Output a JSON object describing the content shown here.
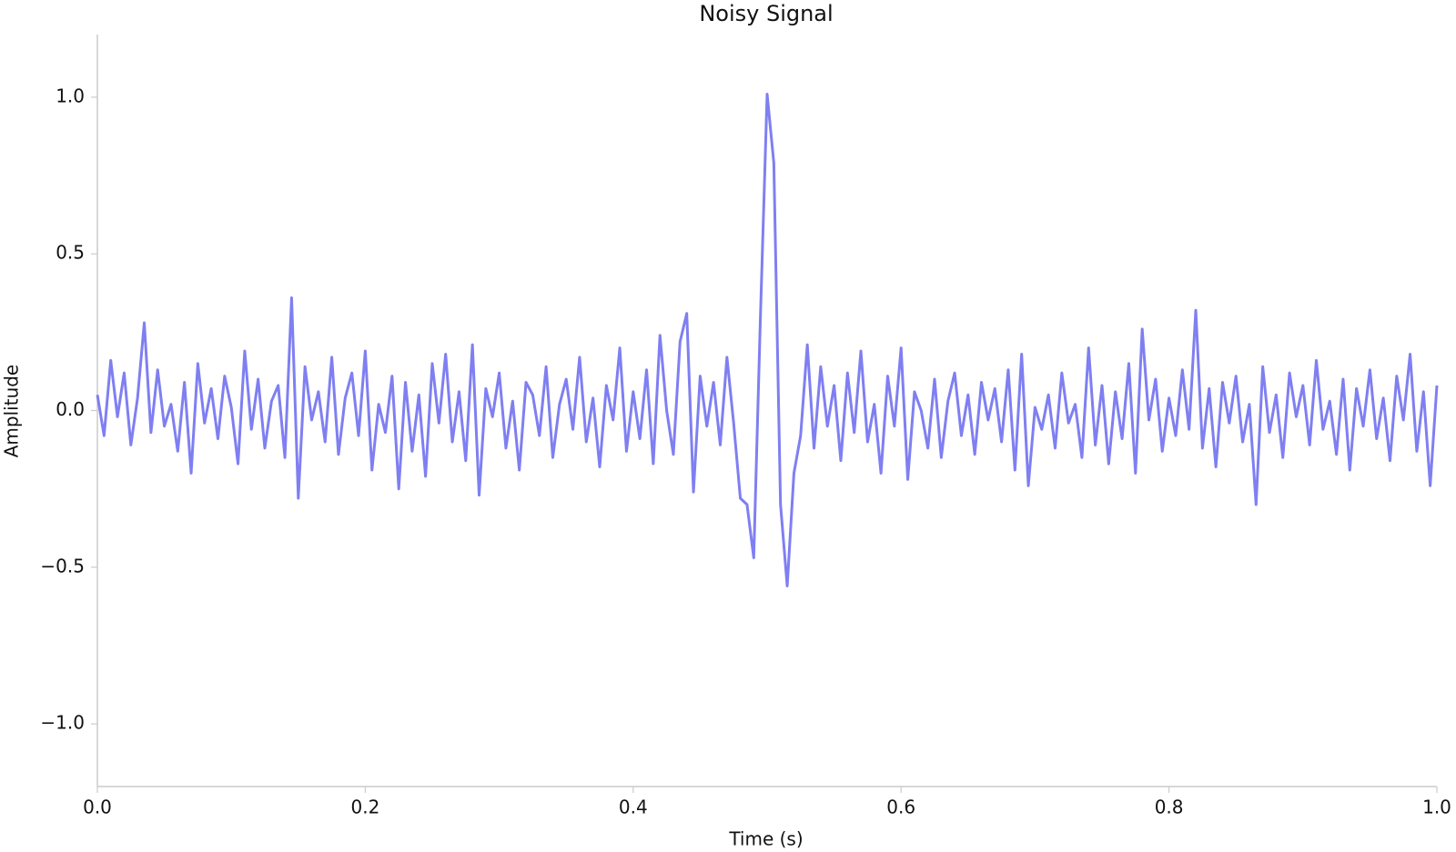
{
  "chart_data": {
    "type": "line",
    "title": "Noisy Signal",
    "x_label": "Time (s)",
    "y_label": "Amplitude",
    "color": "#7f7ff2",
    "xlim": [
      0,
      1
    ],
    "ylim": [
      -1.2,
      1.2
    ],
    "xticks": [
      {
        "value": 0,
        "label": "0.0"
      },
      0.2,
      0.4,
      0.6,
      0.8,
      {
        "value": 1,
        "label": "1.0"
      }
    ],
    "yticks": [
      {
        "value": -1,
        "label": "−1.0"
      },
      {
        "value": -0.5,
        "label": "−0.5"
      },
      {
        "value": 0,
        "label": "0.0"
      },
      0.5,
      {
        "value": 1,
        "label": "1.0"
      }
    ],
    "grid": false,
    "x": [
      0,
      0.005,
      0.01,
      0.015,
      0.02,
      0.025,
      0.03,
      0.035,
      0.04,
      0.045,
      0.05,
      0.055,
      0.06,
      0.065,
      0.07,
      0.075,
      0.08,
      0.085,
      0.09,
      0.095,
      0.1,
      0.105,
      0.11,
      0.115,
      0.12,
      0.125,
      0.13,
      0.135,
      0.14,
      0.145,
      0.15,
      0.155,
      0.16,
      0.165,
      0.17,
      0.175,
      0.18,
      0.185,
      0.19,
      0.195,
      0.2,
      0.205,
      0.21,
      0.215,
      0.22,
      0.225,
      0.23,
      0.235,
      0.24,
      0.245,
      0.25,
      0.255,
      0.26,
      0.265,
      0.27,
      0.275,
      0.28,
      0.285,
      0.29,
      0.295,
      0.3,
      0.305,
      0.31,
      0.315,
      0.32,
      0.325,
      0.33,
      0.335,
      0.34,
      0.345,
      0.35,
      0.355,
      0.36,
      0.365,
      0.37,
      0.375,
      0.38,
      0.385,
      0.39,
      0.395,
      0.4,
      0.405,
      0.41,
      0.415,
      0.42,
      0.425,
      0.43,
      0.435,
      0.44,
      0.445,
      0.45,
      0.455,
      0.46,
      0.465,
      0.47,
      0.475,
      0.48,
      0.485,
      0.49,
      0.495,
      0.5,
      0.505,
      0.51,
      0.515,
      0.52,
      0.525,
      0.53,
      0.535,
      0.54,
      0.545,
      0.55,
      0.555,
      0.56,
      0.565,
      0.57,
      0.575,
      0.58,
      0.585,
      0.59,
      0.595,
      0.6,
      0.605,
      0.61,
      0.615,
      0.62,
      0.625,
      0.63,
      0.635,
      0.64,
      0.645,
      0.65,
      0.655,
      0.66,
      0.665,
      0.67,
      0.675,
      0.68,
      0.685,
      0.69,
      0.695,
      0.7,
      0.705,
      0.71,
      0.715,
      0.72,
      0.725,
      0.73,
      0.735,
      0.74,
      0.745,
      0.75,
      0.755,
      0.76,
      0.765,
      0.77,
      0.775,
      0.78,
      0.785,
      0.79,
      0.795,
      0.8,
      0.805,
      0.81,
      0.815,
      0.82,
      0.825,
      0.83,
      0.835,
      0.84,
      0.845,
      0.85,
      0.855,
      0.86,
      0.865,
      0.87,
      0.875,
      0.88,
      0.885,
      0.89,
      0.895,
      0.9,
      0.905,
      0.91,
      0.915,
      0.92,
      0.925,
      0.93,
      0.935,
      0.94,
      0.945,
      0.95,
      0.955,
      0.96,
      0.965,
      0.97,
      0.975,
      0.98,
      0.985,
      0.99,
      0.995,
      1
    ],
    "values": [
      0.05,
      -0.08,
      0.16,
      -0.02,
      0.12,
      -0.11,
      0.04,
      0.28,
      -0.07,
      0.13,
      -0.05,
      0.02,
      -0.13,
      0.09,
      -0.2,
      0.15,
      -0.04,
      0.07,
      -0.09,
      0.11,
      0.01,
      -0.17,
      0.19,
      -0.06,
      0.1,
      -0.12,
      0.03,
      0.08,
      -0.15,
      0.36,
      -0.28,
      0.14,
      -0.03,
      0.06,
      -0.1,
      0.17,
      -0.14,
      0.04,
      0.12,
      -0.08,
      0.19,
      -0.19,
      0.02,
      -0.07,
      0.11,
      -0.25,
      0.09,
      -0.13,
      0.05,
      -0.21,
      0.15,
      -0.04,
      0.18,
      -0.1,
      0.06,
      -0.16,
      0.21,
      -0.27,
      0.07,
      -0.02,
      0.12,
      -0.12,
      0.03,
      -0.19,
      0.09,
      0.05,
      -0.08,
      0.14,
      -0.15,
      0.02,
      0.1,
      -0.06,
      0.17,
      -0.1,
      0.04,
      -0.18,
      0.08,
      -0.03,
      0.2,
      -0.13,
      0.06,
      -0.09,
      0.13,
      -0.17,
      0.24,
      0.0,
      -0.14,
      0.22,
      0.31,
      -0.26,
      0.11,
      -0.05,
      0.09,
      -0.11,
      0.17,
      -0.04,
      -0.28,
      -0.3,
      -0.47,
      0.3,
      1.01,
      0.79,
      -0.3,
      -0.56,
      -0.2,
      -0.08,
      0.21,
      -0.12,
      0.14,
      -0.05,
      0.08,
      -0.16,
      0.12,
      -0.07,
      0.19,
      -0.1,
      0.02,
      -0.2,
      0.11,
      -0.05,
      0.2,
      -0.22,
      0.06,
      0.0,
      -0.12,
      0.1,
      -0.15,
      0.03,
      0.12,
      -0.08,
      0.05,
      -0.14,
      0.09,
      -0.03,
      0.07,
      -0.1,
      0.13,
      -0.19,
      0.18,
      -0.24,
      0.01,
      -0.06,
      0.05,
      -0.12,
      0.12,
      -0.04,
      0.02,
      -0.15,
      0.2,
      -0.11,
      0.08,
      -0.17,
      0.06,
      -0.09,
      0.15,
      -0.2,
      0.26,
      -0.03,
      0.1,
      -0.13,
      0.04,
      -0.08,
      0.13,
      -0.06,
      0.32,
      -0.12,
      0.07,
      -0.18,
      0.09,
      -0.04,
      0.11,
      -0.1,
      0.02,
      -0.3,
      0.14,
      -0.07,
      0.05,
      -0.15,
      0.12,
      -0.02,
      0.08,
      -0.11,
      0.16,
      -0.06,
      0.03,
      -0.14,
      0.1,
      -0.19,
      0.07,
      -0.05,
      0.13,
      -0.09,
      0.04,
      -0.16,
      0.11,
      -0.03,
      0.18,
      -0.13,
      0.06,
      -0.24,
      0.08
    ]
  }
}
